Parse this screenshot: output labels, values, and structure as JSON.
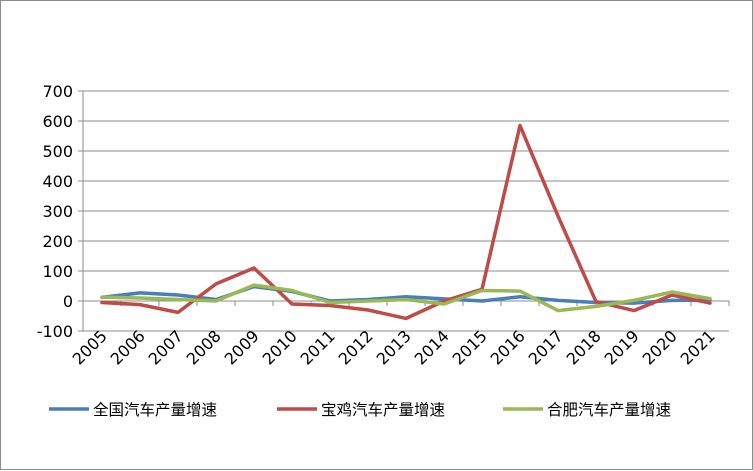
{
  "chart_data": {
    "type": "line",
    "title": "",
    "xlabel": "",
    "ylabel": "",
    "ylim": [
      -100,
      700
    ],
    "yticks": [
      -100,
      0,
      100,
      200,
      300,
      400,
      500,
      600,
      700
    ],
    "ytick_labels": [
      "-100",
      "0",
      "100",
      "200",
      "300",
      "400",
      "500",
      "600",
      "700"
    ],
    "categories": [
      "2005",
      "2006",
      "2007",
      "2008",
      "2009",
      "2010",
      "2011",
      "2012",
      "2013",
      "2014",
      "2015",
      "2016",
      "2017",
      "2018",
      "2019",
      "2020",
      "2021"
    ],
    "grid": "horizontal",
    "legend_position": "bottom",
    "series": [
      {
        "name": "全国汽车产量增速",
        "color": "#4a7ebb",
        "values": [
          12,
          27,
          20,
          5,
          48,
          32,
          0,
          5,
          14,
          7,
          0,
          14,
          2,
          -5,
          -7,
          2,
          3
        ]
      },
      {
        "name": "宝鸡汽车产量增速",
        "color": "#be4b48",
        "values": [
          -5,
          -12,
          -38,
          57,
          110,
          -10,
          -15,
          -30,
          -58,
          0,
          39,
          585,
          283,
          -2,
          -32,
          20,
          -7
        ]
      },
      {
        "name": "合肥汽车产量增速",
        "color": "#98b954",
        "values": [
          13,
          10,
          5,
          0,
          53,
          35,
          -5,
          0,
          5,
          -10,
          35,
          33,
          -32,
          -18,
          2,
          30,
          8
        ]
      }
    ]
  }
}
